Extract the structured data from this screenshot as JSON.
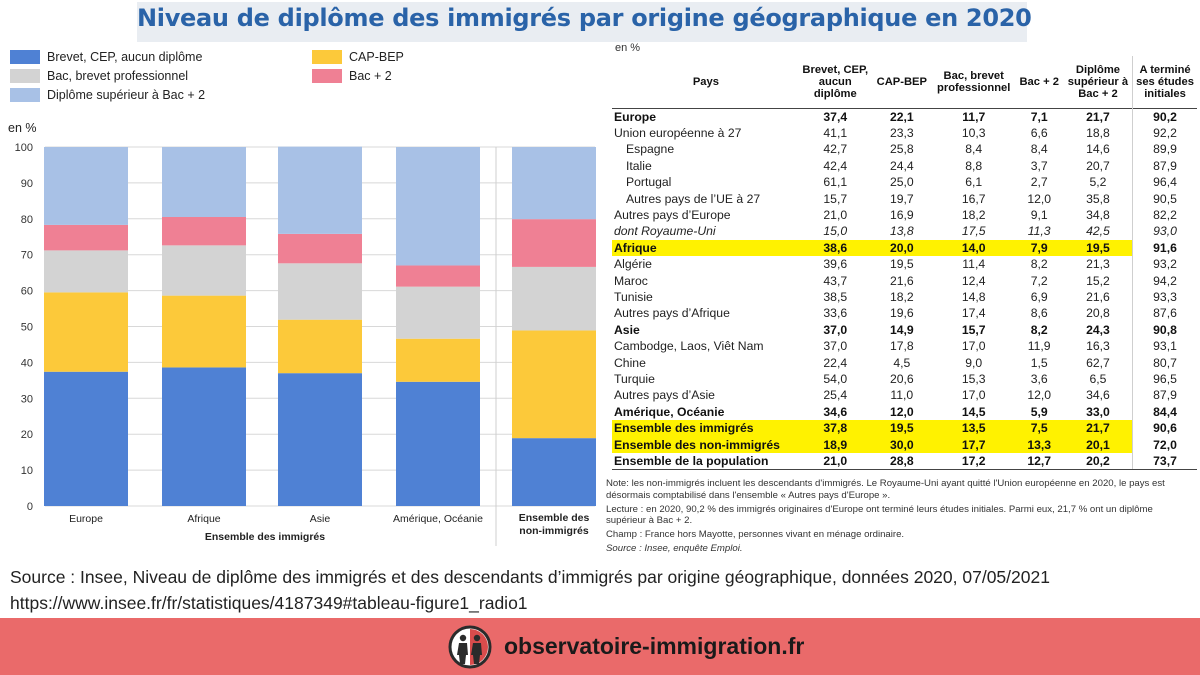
{
  "title": "Niveau de diplôme des immigrés par origine géographique en 2020",
  "colors": {
    "brevet": "#4f81d4",
    "cap": "#fcc93a",
    "bac": "#d3d3d3",
    "bac2": "#ef8094",
    "sup": "#a8c1e6",
    "title": "#2a63a8",
    "footer": "#ea6a6a",
    "highlight": "#fff200"
  },
  "legend": {
    "brevet": "Brevet, CEP, aucun diplôme",
    "bac": "Bac, brevet professionnel",
    "sup": "Diplôme supérieur à Bac + 2",
    "cap": "CAP-BEP",
    "bac2": "Bac + 2"
  },
  "chart_data": {
    "type": "bar",
    "stacked": true,
    "ylabel": "en %",
    "ylim": [
      0,
      100
    ],
    "yticks": [
      0,
      10,
      20,
      30,
      40,
      50,
      60,
      70,
      80,
      90,
      100
    ],
    "categories": [
      "Europe",
      "Afrique",
      "Asie",
      "Amérique, Océanie",
      "Ensemble des non-immigrés"
    ],
    "group_label": "Ensemble des immigrés",
    "series": [
      {
        "name": "Brevet, CEP, aucun diplôme",
        "key": "brevet",
        "values": [
          37.4,
          38.6,
          37.0,
          34.6,
          18.9
        ]
      },
      {
        "name": "CAP-BEP",
        "key": "cap",
        "values": [
          22.1,
          20.0,
          14.9,
          12.0,
          30.0
        ]
      },
      {
        "name": "Bac, brevet professionnel",
        "key": "bac",
        "values": [
          11.7,
          14.0,
          15.7,
          14.5,
          17.7
        ]
      },
      {
        "name": "Bac + 2",
        "key": "bac2",
        "values": [
          7.1,
          7.9,
          8.2,
          5.9,
          13.3
        ]
      },
      {
        "name": "Diplôme supérieur à Bac + 2",
        "key": "sup",
        "values": [
          21.7,
          19.5,
          24.3,
          33.0,
          20.1
        ]
      }
    ],
    "grid": true,
    "legend_position": "top-left"
  },
  "table": {
    "unit": "en %",
    "headers": [
      "Pays",
      "Brevet, CEP, aucun diplôme",
      "CAP-BEP",
      "Bac, brevet professionnel",
      "Bac + 2",
      "Diplôme supérieur à Bac + 2",
      "A terminé ses études initiales"
    ],
    "rows": [
      {
        "label": "Europe",
        "style": "bold",
        "values": [
          "37,4",
          "22,1",
          "11,7",
          "7,1",
          "21,7",
          "90,2"
        ]
      },
      {
        "label": "Union européenne à 27",
        "style": "",
        "values": [
          "41,1",
          "23,3",
          "10,3",
          "6,6",
          "18,8",
          "92,2"
        ]
      },
      {
        "label": "Espagne",
        "style": "indent",
        "values": [
          "42,7",
          "25,8",
          "8,4",
          "8,4",
          "14,6",
          "89,9"
        ]
      },
      {
        "label": "Italie",
        "style": "indent",
        "values": [
          "42,4",
          "24,4",
          "8,8",
          "3,7",
          "20,7",
          "87,9"
        ]
      },
      {
        "label": "Portugal",
        "style": "indent",
        "values": [
          "61,1",
          "25,0",
          "6,1",
          "2,7",
          "5,2",
          "96,4"
        ]
      },
      {
        "label": "Autres pays de l’UE à 27",
        "style": "indent",
        "values": [
          "15,7",
          "19,7",
          "16,7",
          "12,0",
          "35,8",
          "90,5"
        ]
      },
      {
        "label": "Autres pays d’Europe",
        "style": "",
        "values": [
          "21,0",
          "16,9",
          "18,2",
          "9,1",
          "34,8",
          "82,2"
        ]
      },
      {
        "label": "dont Royaume-Uni",
        "style": "italic",
        "values": [
          "15,0",
          "13,8",
          "17,5",
          "11,3",
          "42,5",
          "93,0"
        ]
      },
      {
        "label": "Afrique",
        "style": "bold hl",
        "values": [
          "38,6",
          "20,0",
          "14,0",
          "7,9",
          "19,5",
          "91,6"
        ]
      },
      {
        "label": "Algérie",
        "style": "",
        "values": [
          "39,6",
          "19,5",
          "11,4",
          "8,2",
          "21,3",
          "93,2"
        ]
      },
      {
        "label": "Maroc",
        "style": "",
        "values": [
          "43,7",
          "21,6",
          "12,4",
          "7,2",
          "15,2",
          "94,2"
        ]
      },
      {
        "label": "Tunisie",
        "style": "",
        "values": [
          "38,5",
          "18,2",
          "14,8",
          "6,9",
          "21,6",
          "93,3"
        ]
      },
      {
        "label": "Autres pays d’Afrique",
        "style": "",
        "values": [
          "33,6",
          "19,6",
          "17,4",
          "8,6",
          "20,8",
          "87,6"
        ]
      },
      {
        "label": "Asie",
        "style": "bold",
        "values": [
          "37,0",
          "14,9",
          "15,7",
          "8,2",
          "24,3",
          "90,8"
        ]
      },
      {
        "label": "Cambodge, Laos, Viêt Nam",
        "style": "",
        "values": [
          "37,0",
          "17,8",
          "17,0",
          "11,9",
          "16,3",
          "93,1"
        ]
      },
      {
        "label": "Chine",
        "style": "",
        "values": [
          "22,4",
          "4,5",
          "9,0",
          "1,5",
          "62,7",
          "80,7"
        ]
      },
      {
        "label": "Turquie",
        "style": "",
        "values": [
          "54,0",
          "20,6",
          "15,3",
          "3,6",
          "6,5",
          "96,5"
        ]
      },
      {
        "label": "Autres pays d’Asie",
        "style": "",
        "values": [
          "25,4",
          "11,0",
          "17,0",
          "12,0",
          "34,6",
          "87,9"
        ]
      },
      {
        "label": "Amérique, Océanie",
        "style": "bold",
        "values": [
          "34,6",
          "12,0",
          "14,5",
          "5,9",
          "33,0",
          "84,4"
        ]
      },
      {
        "label": "Ensemble des immigrés",
        "style": "bold hl",
        "values": [
          "37,8",
          "19,5",
          "13,5",
          "7,5",
          "21,7",
          "90,6"
        ]
      },
      {
        "label": "Ensemble des non-immigrés",
        "style": "bold hl",
        "values": [
          "18,9",
          "30,0",
          "17,7",
          "13,3",
          "20,1",
          "72,0"
        ]
      },
      {
        "label": "Ensemble de la population",
        "style": "bold",
        "values": [
          "21,0",
          "28,8",
          "17,2",
          "12,7",
          "20,2",
          "73,7"
        ]
      }
    ]
  },
  "notes": {
    "note": "Note: les non-immigrés incluent les descendants d'immigrés. Le Royaume-Uni ayant quitté l'Union européenne en 2020, le pays est désormais comptabilisé dans l'ensemble « Autres pays d'Europe ».",
    "lecture": "Lecture : en 2020, 90,2 % des immigrés originaires d'Europe ont terminé leurs études initiales. Parmi eux, 21,7 % ont un diplôme supérieur à Bac + 2.",
    "champ": "Champ : France hors Mayotte, personnes vivant en ménage ordinaire.",
    "source": "Source : Insee, enquête Emploi."
  },
  "source_line": "Source : Insee, Niveau de diplôme des immigrés et des descendants d’immigrés par origine géographique, données 2020, 07/05/2021",
  "source_url": "https://www.insee.fr/fr/statistiques/4187349#tableau-figure1_radio1",
  "footer": {
    "site": "observatoire-immigration.fr"
  }
}
